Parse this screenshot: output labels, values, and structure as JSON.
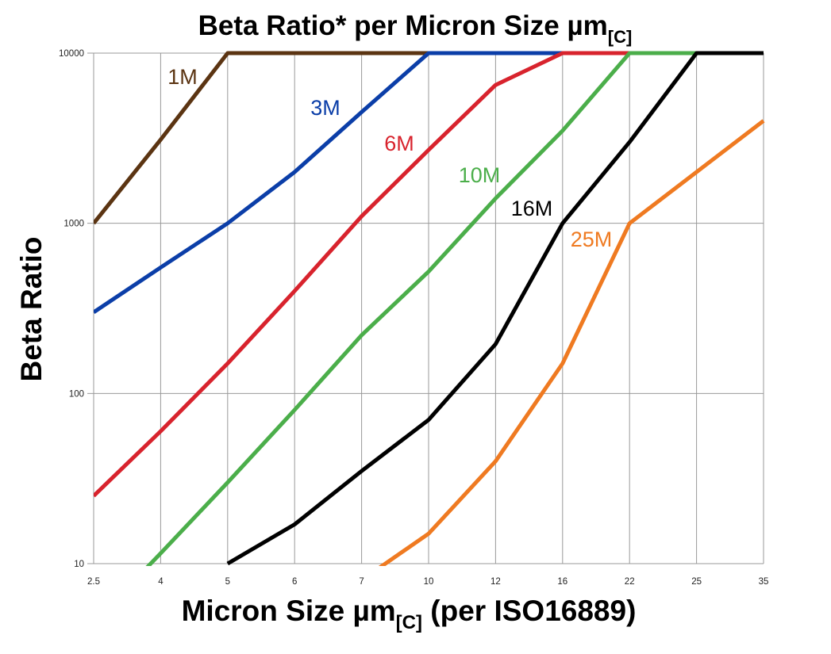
{
  "chart_data": {
    "type": "line",
    "title": "Beta Ratio* per Micron Size µm",
    "title_subscript": "[C]",
    "xlabel": "Micron Size µm",
    "xlabel_subscript": "[C]",
    "xlabel_suffix": " (per ISO16889)",
    "ylabel": "Beta Ratio",
    "categories": [
      "2.5",
      "4",
      "5",
      "6",
      "7",
      "10",
      "12",
      "16",
      "22",
      "25",
      "35"
    ],
    "y_scale": "log",
    "ylim": [
      10,
      10000
    ],
    "y_ticks": [
      "10",
      "100",
      "1000",
      "10000"
    ],
    "grid": true,
    "legend": "inline labels",
    "series": [
      {
        "name": "1M",
        "color": "#5b3412",
        "values": [
          1000,
          3100,
          10000,
          10000,
          10000,
          10000,
          10000,
          10000,
          10000,
          10000,
          10000
        ]
      },
      {
        "name": "3M",
        "color": "#0b3ea8",
        "values": [
          300,
          550,
          1000,
          2000,
          4500,
          10000,
          10000,
          10000,
          10000,
          10000,
          10000
        ]
      },
      {
        "name": "6M",
        "color": "#d8232d",
        "values": [
          25,
          60,
          150,
          400,
          1100,
          2700,
          6500,
          10000,
          10000,
          10000,
          10000
        ]
      },
      {
        "name": "10M",
        "color": "#4bae4a",
        "values": [
          4.5,
          11.5,
          30,
          80,
          220,
          520,
          1400,
          3500,
          10000,
          10000,
          10000
        ]
      },
      {
        "name": "16M",
        "color": "#000000",
        "values": [
          null,
          null,
          10,
          17,
          35,
          70,
          195,
          1000,
          3000,
          10000,
          10000
        ]
      },
      {
        "name": "25M",
        "color": "#ef7a21",
        "values": [
          null,
          null,
          null,
          null,
          8,
          15,
          40,
          150,
          1000,
          2000,
          4000
        ]
      }
    ]
  }
}
